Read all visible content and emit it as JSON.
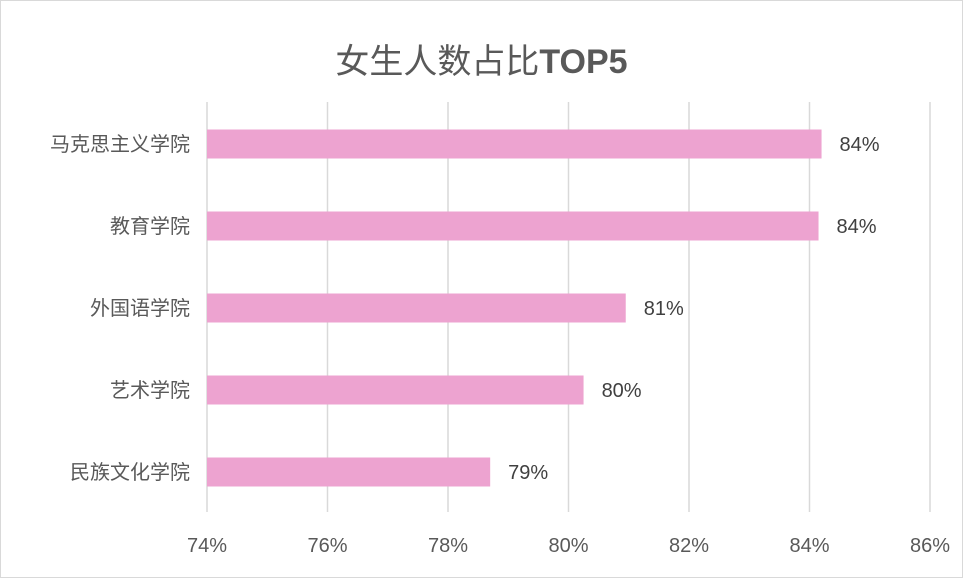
{
  "chart_data": {
    "type": "bar",
    "orientation": "horizontal",
    "title_cjk": "女生人数占比",
    "title_latin": "TOP5",
    "categories": [
      "马克思主义学院",
      "教育学院",
      "外国语学院",
      "艺术学院",
      "民族文化学院"
    ],
    "values": [
      84.2,
      84.15,
      80.95,
      80.25,
      78.7
    ],
    "data_labels": [
      "84%",
      "84%",
      "81%",
      "80%",
      "79%"
    ],
    "xlim": [
      74,
      86
    ],
    "xticks": [
      74,
      76,
      78,
      80,
      82,
      84,
      86
    ],
    "xtick_labels": [
      "74%",
      "76%",
      "78%",
      "80%",
      "82%",
      "84%",
      "86%"
    ],
    "grid": "vertical",
    "bar_color": "#eda3d0",
    "grid_color": "#d9d9d9",
    "legend": "none"
  }
}
